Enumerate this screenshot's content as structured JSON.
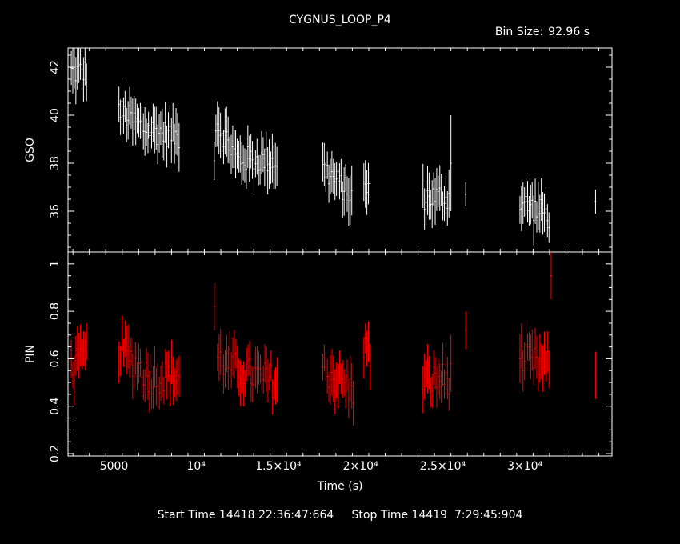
{
  "chart_data": {
    "type": "scatter",
    "title": "CYGNUS_LOOP_P4",
    "bin_size_label": "Bin Size:",
    "bin_size_value": "92.96 s",
    "xlabel": "Time (s)",
    "xlim": [
      2200,
      35300
    ],
    "x_ticks": [
      {
        "value": 5000,
        "label": "5000"
      },
      {
        "value": 10000,
        "label": "10⁴"
      },
      {
        "value": 15000,
        "label": "1.5×10⁴"
      },
      {
        "value": 20000,
        "label": "2×10⁴"
      },
      {
        "value": 25000,
        "label": "2.5×10⁴"
      },
      {
        "value": 30000,
        "label": "3×10⁴"
      }
    ],
    "panels": [
      {
        "name": "GSO",
        "ylabel": "GSO",
        "color": "#ffffff",
        "ylim": [
          34.3,
          42.8
        ],
        "y_ticks": [
          {
            "value": 36,
            "label": "36"
          },
          {
            "value": 38,
            "label": "38"
          },
          {
            "value": 40,
            "label": "40"
          },
          {
            "value": 42,
            "label": "42"
          }
        ],
        "segments": [
          {
            "x_start": 2400,
            "x_end": 3400,
            "y_start": 41.8,
            "y_end": 41.8,
            "error": 0.8
          },
          {
            "x_start": 5300,
            "x_end": 7100,
            "y_start": 40.2,
            "y_end": 39.3,
            "error": 0.8
          },
          {
            "x_start": 7100,
            "x_end": 9000,
            "y_start": 39.4,
            "y_end": 39.1,
            "error": 0.8
          },
          {
            "x_start": 11200,
            "x_end": 12400,
            "y_start": 39.8,
            "y_end": 38.3,
            "error": 0.8
          },
          {
            "x_start": 12400,
            "x_end": 15000,
            "y_start": 38.2,
            "y_end": 38.1,
            "error": 0.8
          },
          {
            "x_start": 17700,
            "x_end": 19500,
            "y_start": 37.8,
            "y_end": 36.6,
            "error": 0.8
          },
          {
            "x_start": 20200,
            "x_end": 20600,
            "y_start": 36.9,
            "y_end": 37.1,
            "error": 0.8
          },
          {
            "x_start": 23800,
            "x_end": 25400,
            "y_start": 36.6,
            "y_end": 36.6,
            "error": 0.8
          },
          {
            "x_start": 29700,
            "x_end": 31500,
            "y_start": 36.4,
            "y_end": 35.8,
            "error": 0.8
          }
        ],
        "isolated_points": [
          {
            "x": 11100,
            "y": 38.1,
            "error": 0.8
          },
          {
            "x": 25500,
            "y": 38.0,
            "error": 2.0
          },
          {
            "x": 26400,
            "y": 36.7,
            "error": 0.5
          },
          {
            "x": 34300,
            "y": 36.4,
            "error": 0.5
          }
        ]
      },
      {
        "name": "PIN",
        "ylabel": "PIN",
        "color": "#ff0000",
        "ylim": [
          0.19,
          1.05
        ],
        "y_ticks": [
          {
            "value": 0.2,
            "label": "0.2"
          },
          {
            "value": 0.4,
            "label": "0.4"
          },
          {
            "value": 0.6,
            "label": "0.6"
          },
          {
            "value": 0.8,
            "label": "0.8"
          },
          {
            "value": 1,
            "label": "1"
          }
        ],
        "segments": [
          {
            "x_start": 2400,
            "x_end": 3400,
            "y_start": 0.55,
            "y_end": 0.62,
            "error": 0.08
          },
          {
            "x_start": 5300,
            "x_end": 7200,
            "y_start": 0.65,
            "y_end": 0.52,
            "error": 0.08
          },
          {
            "x_start": 7200,
            "x_end": 9000,
            "y_start": 0.52,
            "y_end": 0.53,
            "error": 0.08
          },
          {
            "x_start": 11300,
            "x_end": 12600,
            "y_start": 0.6,
            "y_end": 0.55,
            "error": 0.08
          },
          {
            "x_start": 12600,
            "x_end": 15000,
            "y_start": 0.55,
            "y_end": 0.5,
            "error": 0.08
          },
          {
            "x_start": 17700,
            "x_end": 19600,
            "y_start": 0.56,
            "y_end": 0.46,
            "error": 0.08
          },
          {
            "x_start": 20200,
            "x_end": 20600,
            "y_start": 0.66,
            "y_end": 0.6,
            "error": 0.08
          },
          {
            "x_start": 23800,
            "x_end": 25400,
            "y_start": 0.5,
            "y_end": 0.52,
            "error": 0.08
          },
          {
            "x_start": 29700,
            "x_end": 31500,
            "y_start": 0.6,
            "y_end": 0.56,
            "error": 0.08
          }
        ],
        "isolated_points": [
          {
            "x": 11100,
            "y": 0.82,
            "error": 0.1
          },
          {
            "x": 25500,
            "y": 0.58,
            "error": 0.12
          },
          {
            "x": 26400,
            "y": 0.72,
            "error": 0.08
          },
          {
            "x": 31600,
            "y": 0.95,
            "error": 0.1
          },
          {
            "x": 34300,
            "y": 0.53,
            "error": 0.1
          }
        ]
      }
    ]
  },
  "footer": {
    "start_label": "Start Time",
    "start_value": "14418 22:36:47:664",
    "stop_label": "Stop Time",
    "stop_value": "14419  7:29:45:904"
  }
}
